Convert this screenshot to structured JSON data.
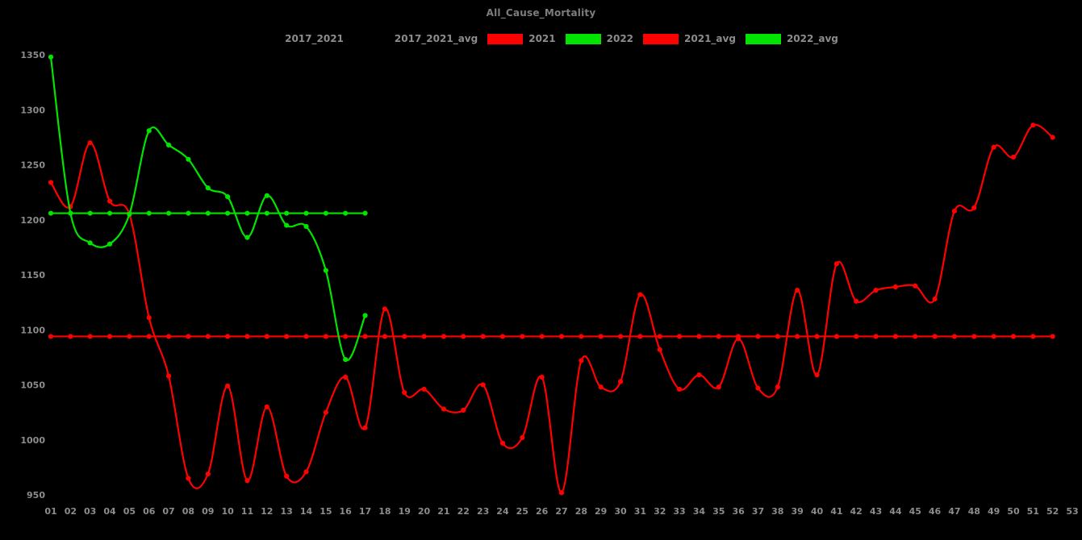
{
  "header": {
    "title": "All_Cause_Mortality"
  },
  "legend": {
    "items": [
      {
        "label": "2017_2021",
        "color": "#000000"
      },
      {
        "label": "2017_2021_avg",
        "color": "#000000"
      },
      {
        "label": "2021",
        "color": "#ff0000"
      },
      {
        "label": "2022",
        "color": "#00e400"
      },
      {
        "label": "2021_avg",
        "color": "#ff0000"
      },
      {
        "label": "2022_avg",
        "color": "#00e400"
      }
    ]
  },
  "colors": {
    "background": "#000000",
    "title_text": "#7d7d7d",
    "tick_text": "#8c8c8c",
    "red": "#ff0000",
    "green": "#00e400"
  },
  "chart_data": {
    "type": "line",
    "title": "All_Cause_Mortality",
    "xlabel": "",
    "ylabel": "",
    "grid": false,
    "legend_position": "top-center",
    "background": "black",
    "x_unit": "week",
    "x_tick_labels": [
      "01",
      "02",
      "03",
      "04",
      "05",
      "06",
      "07",
      "08",
      "09",
      "10",
      "11",
      "12",
      "13",
      "14",
      "15",
      "16",
      "17",
      "18",
      "19",
      "20",
      "21",
      "22",
      "23",
      "24",
      "25",
      "26",
      "27",
      "28",
      "29",
      "30",
      "31",
      "32",
      "33",
      "34",
      "35",
      "36",
      "37",
      "38",
      "39",
      "40",
      "41",
      "42",
      "43",
      "44",
      "45",
      "46",
      "47",
      "48",
      "49",
      "50",
      "51",
      "52",
      "53"
    ],
    "y_ticks": [
      950,
      1000,
      1050,
      1100,
      1150,
      1200,
      1250,
      1300,
      1350
    ],
    "ylim": [
      950,
      1350
    ],
    "series": [
      {
        "name": "2021",
        "color": "#ff0000",
        "marker": "circle",
        "smooth": true,
        "x_start_week": 1,
        "values": [
          1234,
          1212,
          1270,
          1217,
          1205,
          1111,
          1058,
          965,
          969,
          1049,
          963,
          1030,
          967,
          971,
          1025,
          1057,
          1011,
          1119,
          1043,
          1046,
          1028,
          1027,
          1050,
          997,
          1002,
          1057,
          952,
          1072,
          1048,
          1053,
          1132,
          1082,
          1046,
          1059,
          1048,
          1092,
          1047,
          1048,
          1136,
          1059,
          1160,
          1126,
          1136,
          1139,
          1140,
          1128,
          1208,
          1211,
          1266,
          1257,
          1286,
          1275
        ]
      },
      {
        "name": "2022",
        "color": "#00e400",
        "marker": "circle",
        "smooth": true,
        "x_start_week": 1,
        "values": [
          1348,
          1206,
          1179,
          1178,
          1205,
          1281,
          1268,
          1255,
          1229,
          1221,
          1184,
          1222,
          1195,
          1194,
          1154,
          1073,
          1113
        ]
      },
      {
        "name": "2021_avg",
        "color": "#ff0000",
        "marker": "circle",
        "smooth": false,
        "constant": 1094,
        "x_start_week": 1,
        "x_end_week": 52
      },
      {
        "name": "2022_avg",
        "color": "#00e400",
        "marker": "circle",
        "smooth": false,
        "constant": 1206,
        "x_start_week": 1,
        "x_end_week": 17
      }
    ]
  }
}
